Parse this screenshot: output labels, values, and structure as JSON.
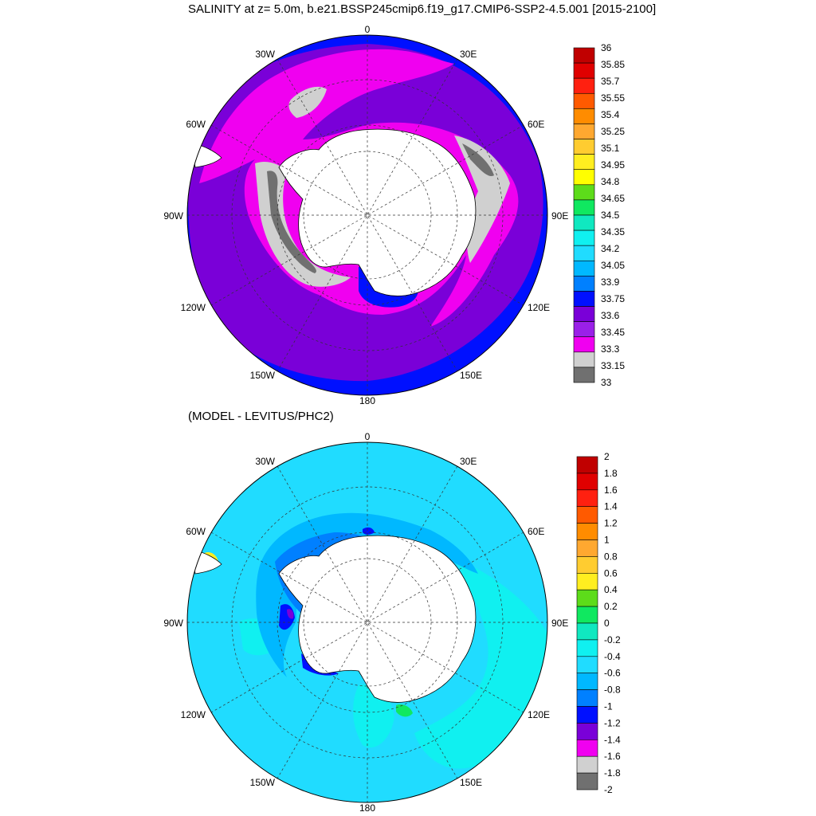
{
  "top_panel": {
    "title": "SALINITY at z=   5.0m, b.e21.BSSP245cmip6.f19_g17.CMIP6-SSP2-4.5.001 [2015-2100]",
    "lon_labels": [
      "0",
      "30E",
      "60E",
      "90E",
      "120E",
      "150E",
      "180",
      "150W",
      "120W",
      "90W",
      "60W",
      "30W"
    ],
    "colorbar": {
      "labels": [
        "36",
        "35.85",
        "35.7",
        "35.55",
        "35.4",
        "35.25",
        "35.1",
        "34.95",
        "34.8",
        "34.65",
        "34.5",
        "34.35",
        "34.2",
        "34.05",
        "33.9",
        "33.75",
        "33.6",
        "33.45",
        "33.3",
        "33.15",
        "33"
      ],
      "colors": [
        "#c00000",
        "#e00000",
        "#ff2010",
        "#ff5a00",
        "#ff8c00",
        "#ffa830",
        "#ffcc30",
        "#ffee20",
        "#ffff00",
        "#5ddc1a",
        "#10e860",
        "#10e8c0",
        "#10f0f0",
        "#20dcff",
        "#00b8ff",
        "#0080ff",
        "#0010ff",
        "#7a00d8",
        "#9a20e8",
        "#f000f0",
        "#d0d0d0",
        "#707070"
      ]
    }
  },
  "bottom_panel": {
    "title": "(MODEL - LEVITUS/PHC2)",
    "lon_labels": [
      "0",
      "30E",
      "60E",
      "90E",
      "120E",
      "150E",
      "180",
      "150W",
      "120W",
      "90W",
      "60W",
      "30W"
    ],
    "colorbar": {
      "labels": [
        "2",
        "1.8",
        "1.6",
        "1.4",
        "1.2",
        "1",
        "0.8",
        "0.6",
        "0.4",
        "0.2",
        "0",
        "-0.2",
        "-0.4",
        "-0.6",
        "-0.8",
        "-1",
        "-1.2",
        "-1.4",
        "-1.6",
        "-1.8",
        "-2"
      ],
      "colors": [
        "#c00000",
        "#e00000",
        "#ff2010",
        "#ff5a00",
        "#ff8c00",
        "#ffa830",
        "#ffcc30",
        "#ffee20",
        "#5ddc1a",
        "#10e860",
        "#10e8c0",
        "#10f0f0",
        "#20dcff",
        "#00b8ff",
        "#0080ff",
        "#0010ff",
        "#7a00d8",
        "#f000f0",
        "#d0d0d0",
        "#707070"
      ]
    }
  }
}
